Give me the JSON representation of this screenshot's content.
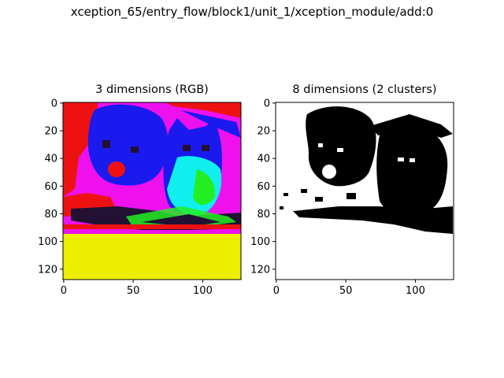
{
  "figure": {
    "suptitle": "xception_65/entry_flow/block1/unit_1/xception_module/add:0"
  },
  "panels": [
    {
      "title": "3 dimensions (RGB)",
      "x_ticks": [
        "0",
        "50",
        "100"
      ],
      "y_ticks": [
        "0",
        "20",
        "40",
        "60",
        "80",
        "100",
        "120"
      ]
    },
    {
      "title": "8 dimensions (2 clusters)",
      "x_ticks": [
        "0",
        "50",
        "100"
      ],
      "y_ticks": [
        "0",
        "20",
        "40",
        "60",
        "80",
        "100",
        "120"
      ]
    }
  ],
  "colors": {
    "red": "#ee1111",
    "magenta": "#ee11ee",
    "blue": "#1a1aee",
    "cyan": "#11eeee",
    "green": "#22ee22",
    "yellow": "#eeee00",
    "dark": "#221133",
    "black": "#000000",
    "white": "#ffffff"
  }
}
